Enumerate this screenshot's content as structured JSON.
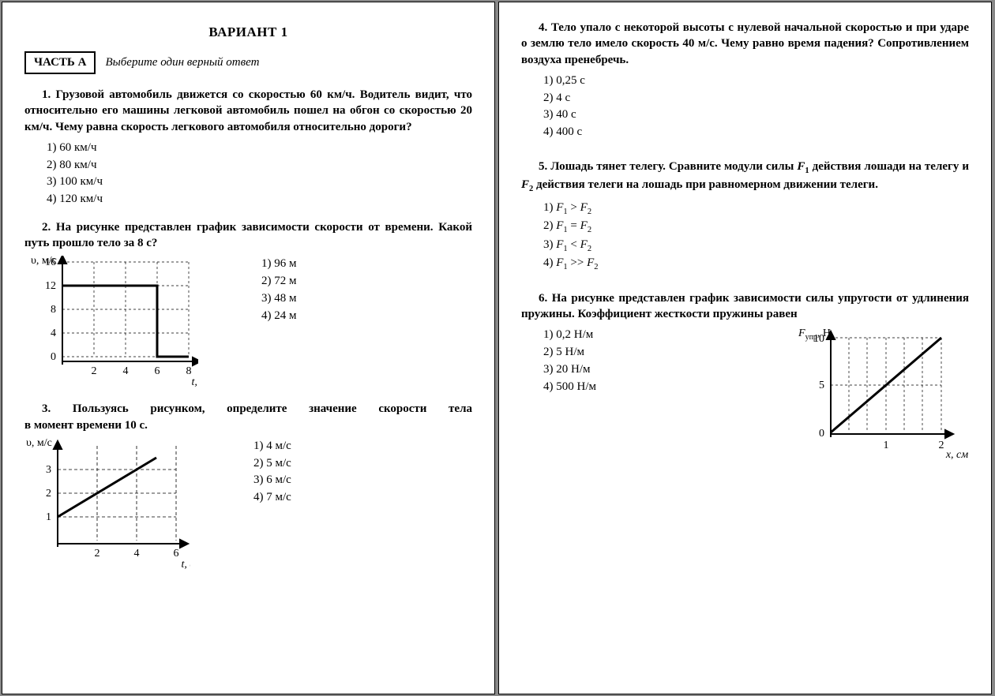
{
  "title": "ВАРИАНТ 1",
  "part": {
    "label": "ЧАСТЬ А",
    "instruction": "Выберите один верный ответ"
  },
  "q1": {
    "text": "1. Грузовой автомобиль движется со скоростью 60 км/ч. Водитель видит, что относительно его машины легковой автомобиль пошел на обгон со скоростью 20 км/ч. Чему равна скорость легкового автомобиля относительно дороги?",
    "opts": [
      "1) 60 км/ч",
      "2) 80 км/ч",
      "3) 100 км/ч",
      "4) 120 км/ч"
    ]
  },
  "q2": {
    "text": "2. На рисунке представлен график зависимости скорости от времени. Какой путь прошло тело за 8 с?",
    "opts": [
      "1) 96 м",
      "2) 72 м",
      "3) 48 м",
      "4) 24 м"
    ],
    "chart": {
      "type": "line-step",
      "ylabel": "υ, м/с",
      "xlabel": "t, с",
      "xlim": [
        0,
        9
      ],
      "ylim": [
        0,
        18
      ],
      "xticks": [
        2,
        4,
        6,
        8
      ],
      "yticks": [
        0,
        4,
        8,
        12,
        16
      ],
      "grid_color": "#000",
      "grid_dash": "3,3",
      "line_width": 2.5,
      "line_color": "#000",
      "points": [
        [
          0,
          12
        ],
        [
          6,
          12
        ],
        [
          6,
          0
        ],
        [
          8,
          0
        ]
      ],
      "bg": "#fff"
    }
  },
  "q3": {
    "text": "3. Пользуясь рисунком, определите значение скорости тела в момент времени 10 с.",
    "opts": [
      "1) 4 м/с",
      "2) 5 м/с",
      "3) 6 м/с",
      "4) 7 м/с"
    ],
    "chart": {
      "type": "line",
      "ylabel": "υ, м/с",
      "xlabel": "t, с",
      "xlim": [
        0,
        7
      ],
      "ylim": [
        0,
        4
      ],
      "xticks": [
        2,
        4,
        6
      ],
      "yticks": [
        1,
        2,
        3
      ],
      "grid_color": "#000",
      "grid_dash": "4,3",
      "line_width": 2.5,
      "line_color": "#000",
      "points": [
        [
          0,
          1
        ],
        [
          5,
          3.5
        ]
      ],
      "bg": "#fff"
    }
  },
  "q4": {
    "text": "4. Тело упало с некоторой высоты с нулевой начальной скоростью и при ударе о землю тело имело скорость 40 м/с. Чему равно время падения? Сопротивлением воздуха пренебречь.",
    "opts": [
      "1) 0,25 с",
      "2) 4 с",
      "3) 40 с",
      "4) 400 с"
    ]
  },
  "q5": {
    "text_before": "5. Лошадь тянет телегу. Сравните модули силы ",
    "f1": "F",
    "f1sub": "1",
    "text_mid1": " действия лошади на телегу и ",
    "f2": "F",
    "f2sub": "2",
    "text_after": " действия телеги на лошадь при равномерном движении телеги.",
    "opts_html": [
      "1) <span class='ital'>F</span><span class='sub'>1</span> &gt; <span class='ital'>F</span><span class='sub'>2</span>",
      "2) <span class='ital'>F</span><span class='sub'>1</span> = <span class='ital'>F</span><span class='sub'>2</span>",
      "3) <span class='ital'>F</span><span class='sub'>1</span> &lt; <span class='ital'>F</span><span class='sub'>2</span>",
      "4) <span class='ital'>F</span><span class='sub'>1</span> &gt;&gt; <span class='ital'>F</span><span class='sub'>2</span>"
    ]
  },
  "q6": {
    "text": "6. На рисунке представлен график зависимости силы упругости от удлинения пружины. Коэффициент жесткости пружины равен",
    "opts": [
      "1) 0,2 Н/м",
      "2) 5 Н/м",
      "3) 20 Н/м",
      "4) 500 Н/м"
    ],
    "chart": {
      "type": "line",
      "ylabel_html": "<tspan font-style='italic'>F</tspan><tspan font-size='10' dy='4'>упр</tspan><tspan dy='-4'>, Н</tspan>",
      "xlabel": "x, см",
      "xlim": [
        0,
        2.5
      ],
      "ylim": [
        0,
        11
      ],
      "xticks": [
        1,
        2
      ],
      "yticks": [
        0,
        5,
        10
      ],
      "grid_color": "#000",
      "grid_dash": "3,3",
      "line_width": 2.5,
      "line_color": "#000",
      "points": [
        [
          0,
          0
        ],
        [
          2,
          10
        ]
      ],
      "bg": "#fff",
      "xgrid_minor": [
        0.333,
        0.667,
        1,
        1.333,
        1.667,
        2
      ]
    }
  }
}
